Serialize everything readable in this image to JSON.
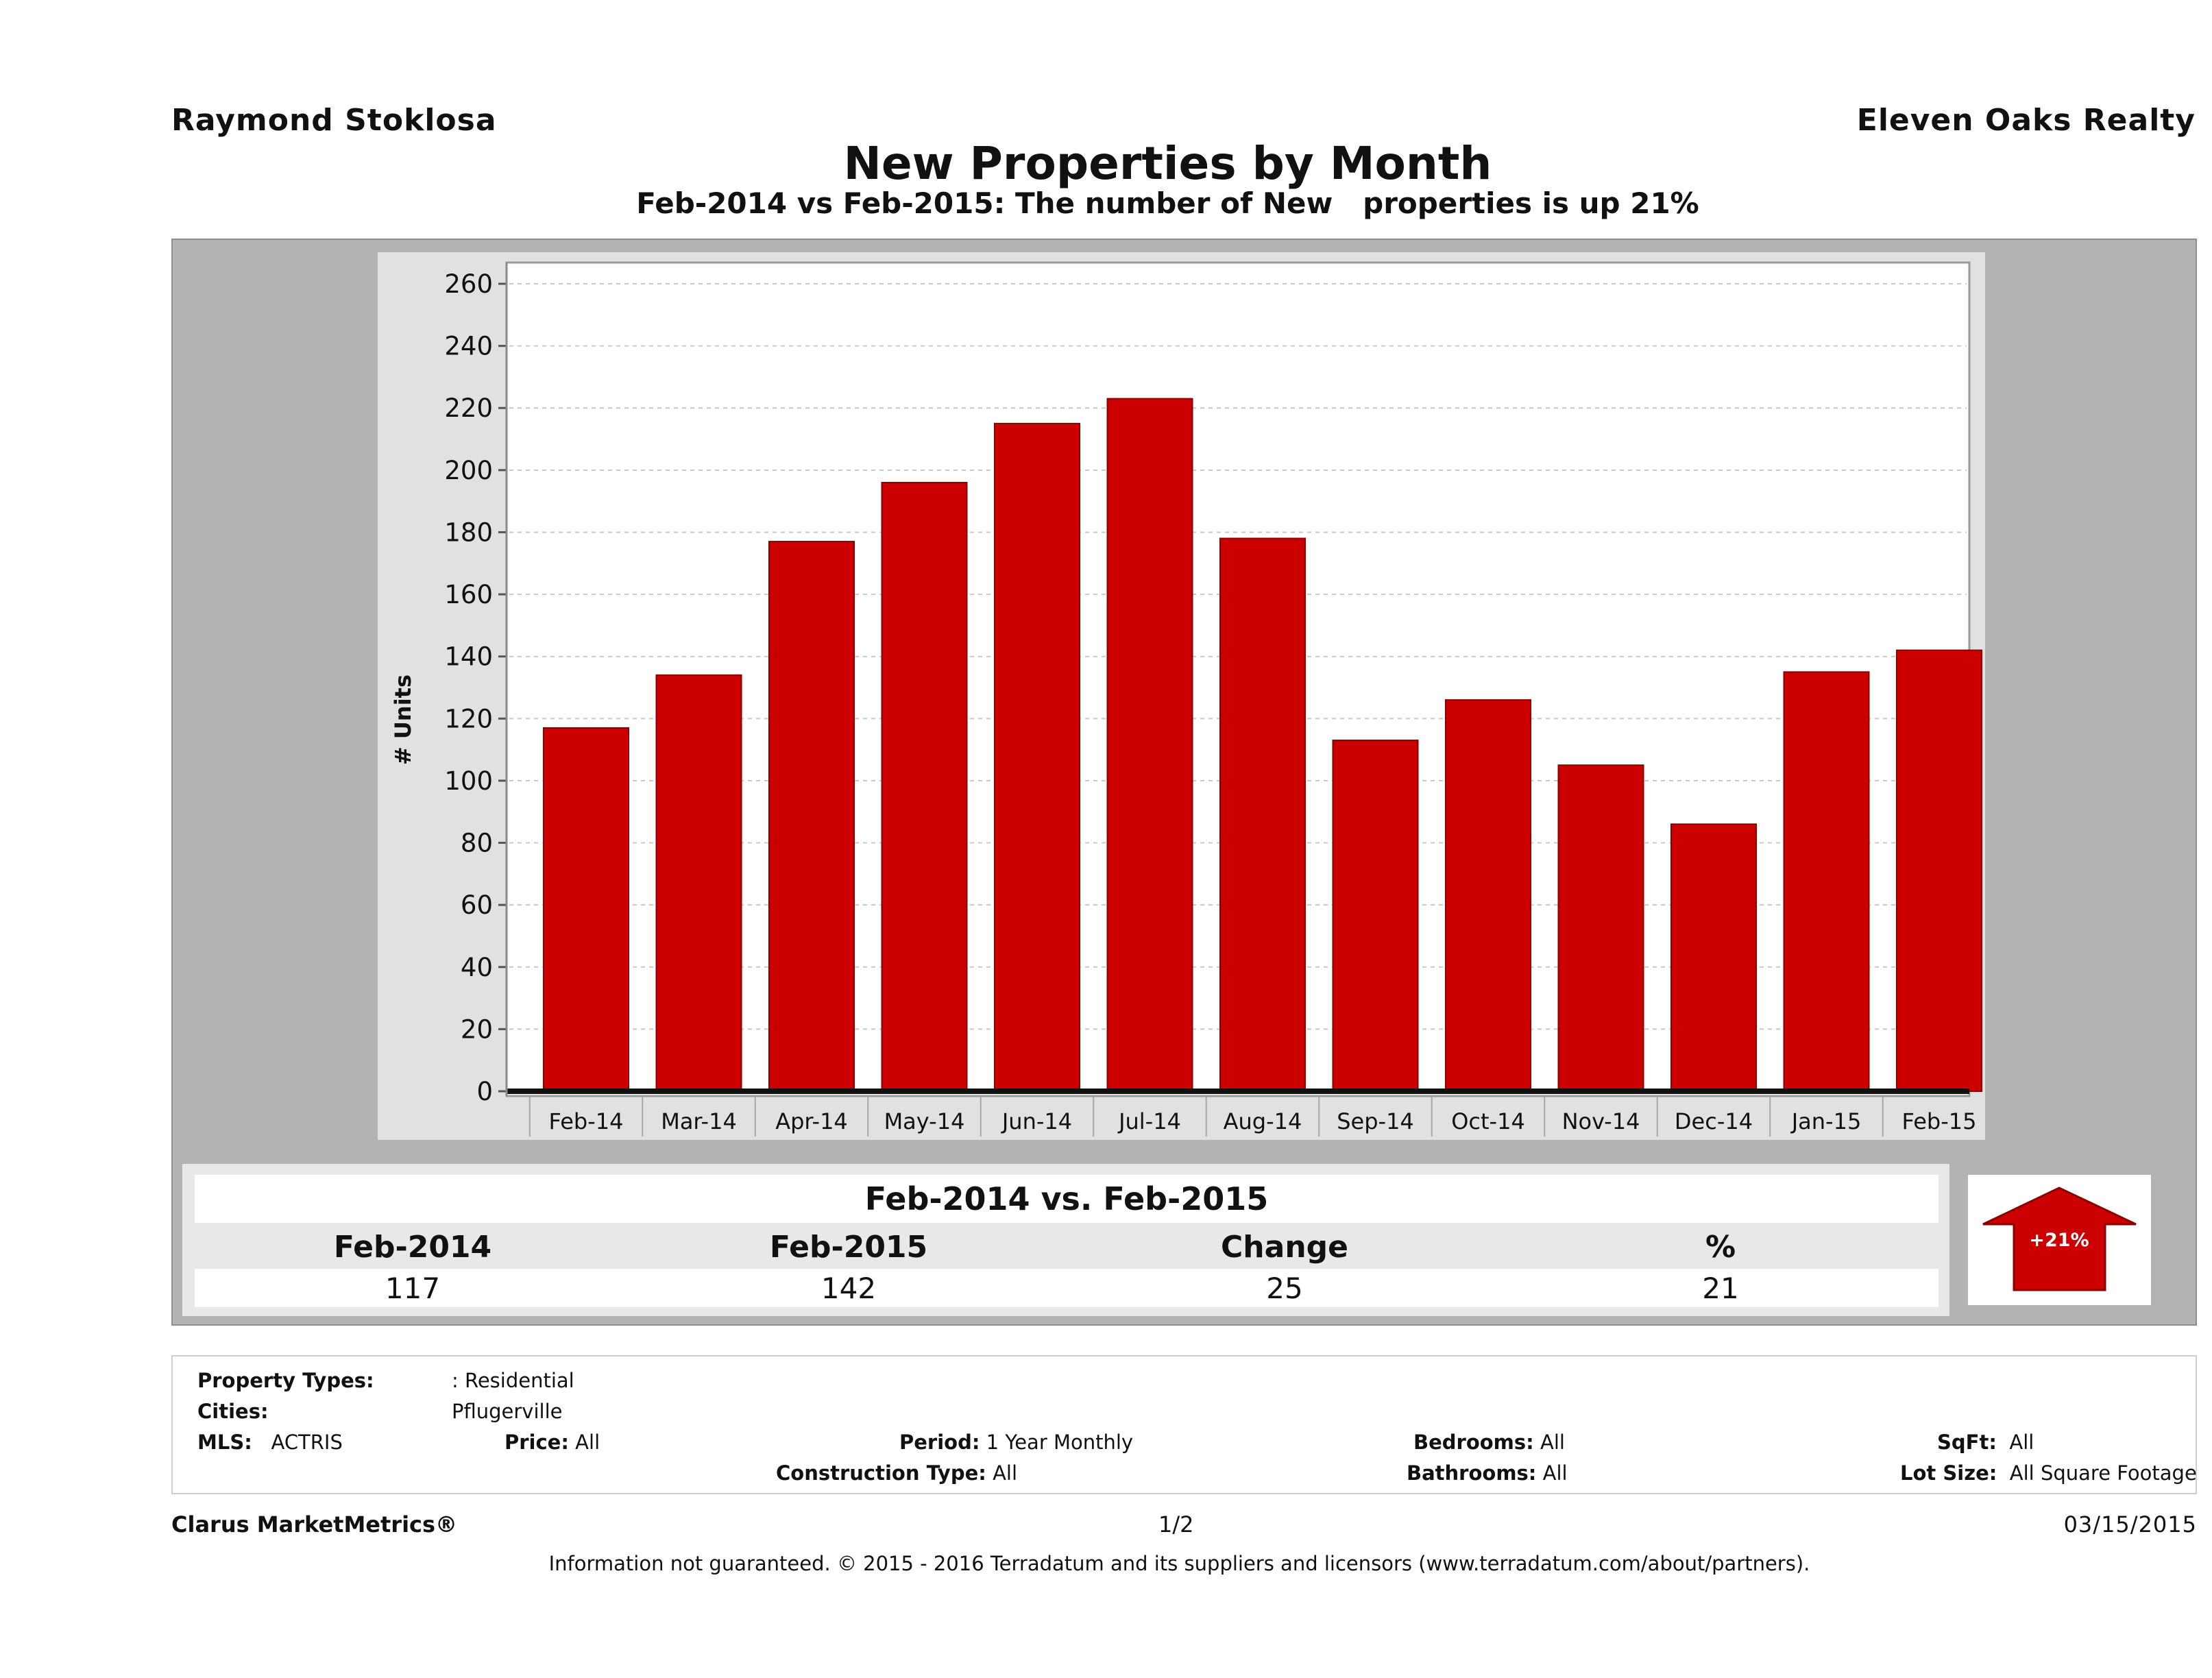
{
  "header": {
    "agent_name": "Raymond Stoklosa",
    "office_name": "Eleven Oaks Realty",
    "title": "New Properties by Month",
    "subtitle": "Feb-2014 vs Feb-2015: The number of New   properties is up 21%"
  },
  "colors": {
    "bar": "#cc0000",
    "bar_edge": "#8b0000",
    "panel": "#b3b3b3",
    "chart_bg": "#e1e1e1",
    "plot_bg": "#ffffff"
  },
  "chart_data": {
    "type": "bar",
    "title": "New Properties by Month",
    "xlabel": "",
    "ylabel": "# Units",
    "categories": [
      "Feb-14",
      "Mar-14",
      "Apr-14",
      "May-14",
      "Jun-14",
      "Jul-14",
      "Aug-14",
      "Sep-14",
      "Oct-14",
      "Nov-14",
      "Dec-14",
      "Jan-15",
      "Feb-15"
    ],
    "values": [
      117,
      134,
      177,
      196,
      215,
      223,
      178,
      113,
      126,
      105,
      86,
      135,
      142
    ],
    "yticks": [
      0,
      20,
      40,
      60,
      80,
      100,
      120,
      140,
      160,
      180,
      200,
      220,
      240,
      260
    ],
    "ylim": [
      0,
      266
    ],
    "grid": true,
    "legend": "none"
  },
  "summary": {
    "title": "Feb-2014 vs. Feb-2015",
    "headers": [
      "Feb-2014",
      "Feb-2015",
      "Change",
      "%"
    ],
    "values": [
      "117",
      "142",
      "25",
      "21"
    ],
    "badge": "+21%",
    "badge_icon": "up-arrow-icon"
  },
  "filters": {
    "property_types_label": "Property Types:",
    "property_types_value": ": Residential",
    "cities_label": "Cities:",
    "cities_value": "Pflugerville",
    "mls_label": "MLS:",
    "mls_value": "ACTRIS",
    "price_label": "Price:",
    "price_value": "All",
    "period_label": "Period:",
    "period_value": "1 Year Monthly",
    "construction_label": "Construction Type:",
    "construction_value": "All",
    "bedrooms_label": "Bedrooms:",
    "bedrooms_value": "All",
    "bathrooms_label": "Bathrooms:",
    "bathrooms_value": "All",
    "sqft_label": "SqFt:",
    "sqft_value": "All",
    "lot_size_label": "Lot Size:",
    "lot_size_value": "All Square Footage"
  },
  "footer": {
    "brand": "Clarus MarketMetrics®",
    "page": "1/2",
    "date": "03/15/2015",
    "copyright": "Information not guaranteed. © 2015 - 2016 Terradatum and its suppliers and licensors (www.terradatum.com/about/partners)."
  }
}
